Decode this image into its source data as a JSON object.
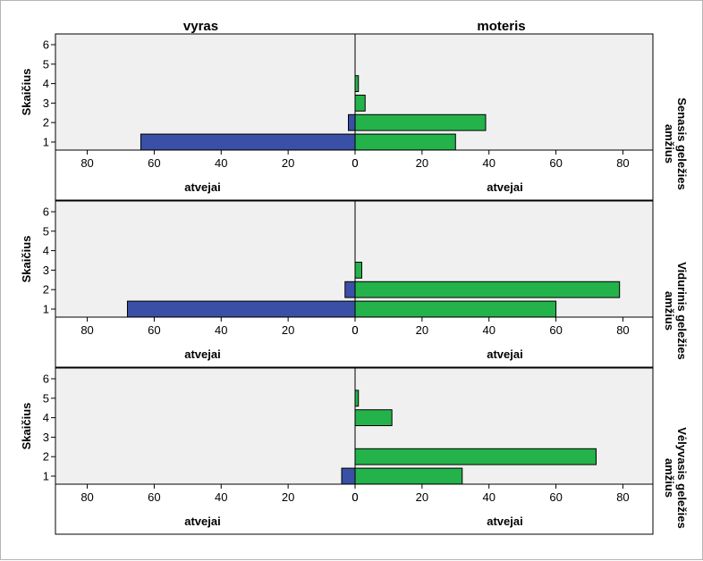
{
  "chart_data": {
    "type": "bar",
    "orientation": "horizontal-population-pyramid",
    "column_headers": [
      "vyras",
      "moteris"
    ],
    "x_label": "atvejai",
    "y_label": "Skaičius",
    "y_categories": [
      1,
      2,
      3,
      4,
      5,
      6
    ],
    "x_ticks_left": [
      80,
      60,
      40,
      20,
      0
    ],
    "x_ticks_right": [
      0,
      20,
      40,
      60,
      80
    ],
    "x_range": [
      0,
      80
    ],
    "colors": {
      "vyras": "#3a50a6",
      "moteris": "#24b24a",
      "plot_bg": "#f0f0f0"
    },
    "panels": [
      {
        "row_label": "Senasis geležies amžius",
        "vyras": [
          64,
          2,
          0,
          0,
          0,
          0
        ],
        "moteris": [
          30,
          39,
          3,
          1,
          0,
          0
        ]
      },
      {
        "row_label": "Vidurinis geležies amžius",
        "vyras": [
          68,
          3,
          0,
          0,
          0,
          0
        ],
        "moteris": [
          60,
          79,
          2,
          0,
          0,
          0
        ]
      },
      {
        "row_label": "Vėlyvasis geležies amžius",
        "vyras": [
          4,
          0,
          0,
          0,
          0,
          0
        ],
        "moteris": [
          32,
          72,
          0,
          11,
          1,
          0
        ]
      }
    ]
  }
}
